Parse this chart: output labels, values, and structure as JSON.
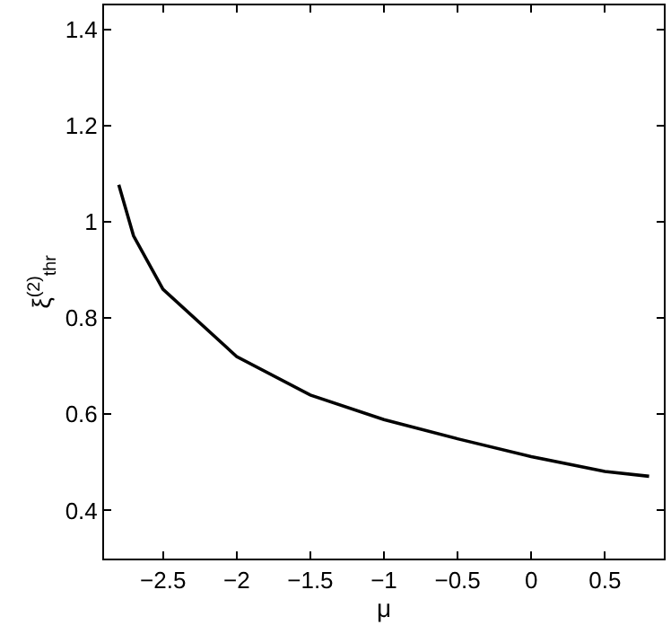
{
  "chart_data": {
    "type": "line",
    "xlabel": "μ",
    "ylabel": "ξ$^{(2)}$$_{thr}$",
    "x": [
      -2.8,
      -2.7,
      -2.5,
      -2,
      -1.5,
      -1,
      -0.5,
      0,
      0.5,
      0.8
    ],
    "series": [
      {
        "color": "#000000",
        "values": [
          1.077,
          0.971,
          0.86,
          0.72,
          0.64,
          0.589,
          0.549,
          0.512,
          0.481,
          0.471
        ]
      }
    ],
    "xlim": [
      -2.9,
      0.9
    ],
    "ylim": [
      0.3,
      1.45
    ],
    "xticks": [
      {
        "value": -2.5,
        "label": "−2.5"
      },
      {
        "value": -2,
        "label": "−2"
      },
      {
        "value": -1.5,
        "label": "−1.5"
      },
      {
        "value": -1,
        "label": "−1"
      },
      {
        "value": -0.5,
        "label": "−0.5"
      },
      0,
      0.5
    ],
    "yticks": [
      0.4,
      0.6,
      0.8,
      1,
      1.2,
      1.4
    ],
    "marker": "none",
    "line_style": "solid"
  }
}
